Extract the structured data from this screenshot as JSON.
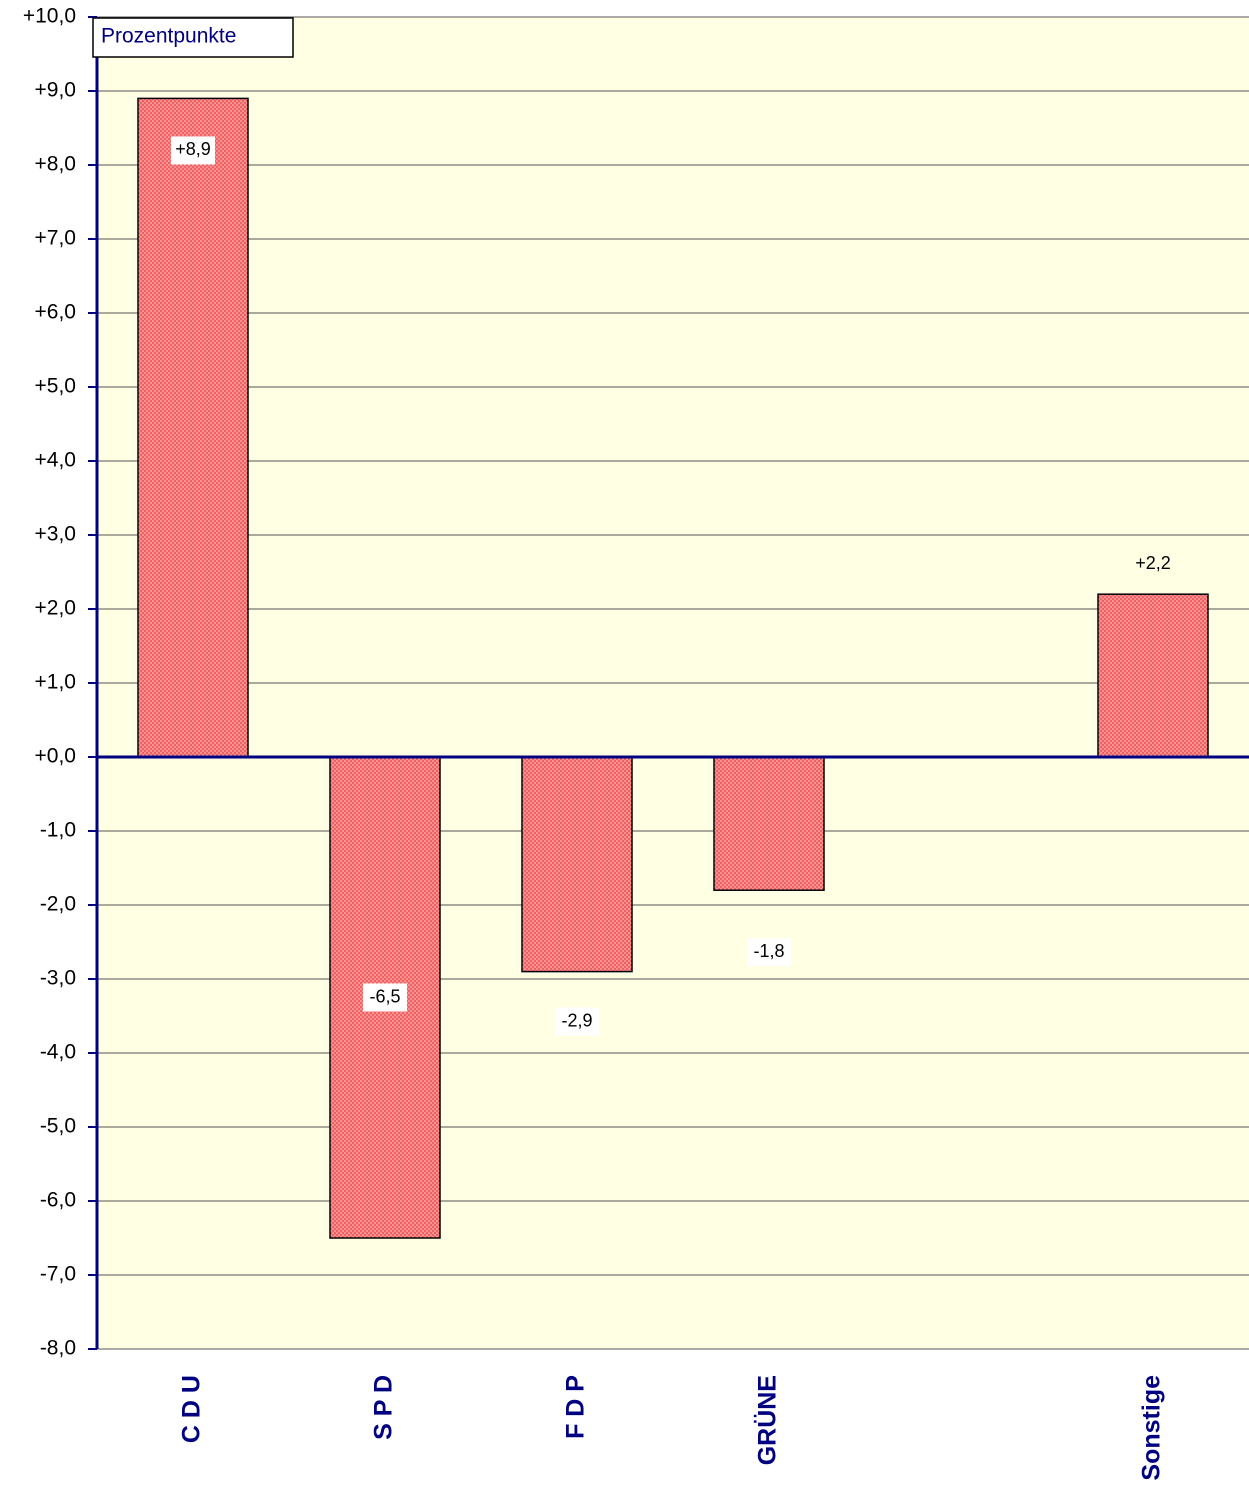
{
  "chart_data": {
    "type": "bar",
    "annotation": "Prozentpunkte",
    "categories": [
      "C D U",
      "S P D",
      "F D P",
      "GRÜNE",
      null,
      "Sonstige"
    ],
    "values": [
      8.9,
      -6.5,
      -2.9,
      -1.8,
      null,
      2.2
    ],
    "value_labels": [
      "+8,9",
      "-6,5",
      "-2,9",
      "-1,8",
      null,
      "+2,2"
    ],
    "color": "#f06060",
    "ylim": [
      -8,
      10
    ],
    "yticks": [
      {
        "value": -8,
        "label": "-8,0"
      },
      {
        "value": -7,
        "label": "-7,0"
      },
      {
        "value": -6,
        "label": "-6,0"
      },
      {
        "value": -5,
        "label": "-5,0"
      },
      {
        "value": -4,
        "label": "-4,0"
      },
      {
        "value": -3,
        "label": "-3,0"
      },
      {
        "value": -2,
        "label": "-2,0"
      },
      {
        "value": -1,
        "label": "-1,0"
      },
      {
        "value": 0,
        "label": "+0,0"
      },
      {
        "value": 1,
        "label": "+1,0"
      },
      {
        "value": 2,
        "label": "+2,0"
      },
      {
        "value": 3,
        "label": "+3,0"
      },
      {
        "value": 4,
        "label": "+4,0"
      },
      {
        "value": 5,
        "label": "+5,0"
      },
      {
        "value": 6,
        "label": "+6,0"
      },
      {
        "value": 7,
        "label": "+7,0"
      },
      {
        "value": 8,
        "label": "+8,0"
      },
      {
        "value": 9,
        "label": "+9,0"
      },
      {
        "value": 10,
        "label": "+10,0"
      }
    ],
    "grid": true
  }
}
